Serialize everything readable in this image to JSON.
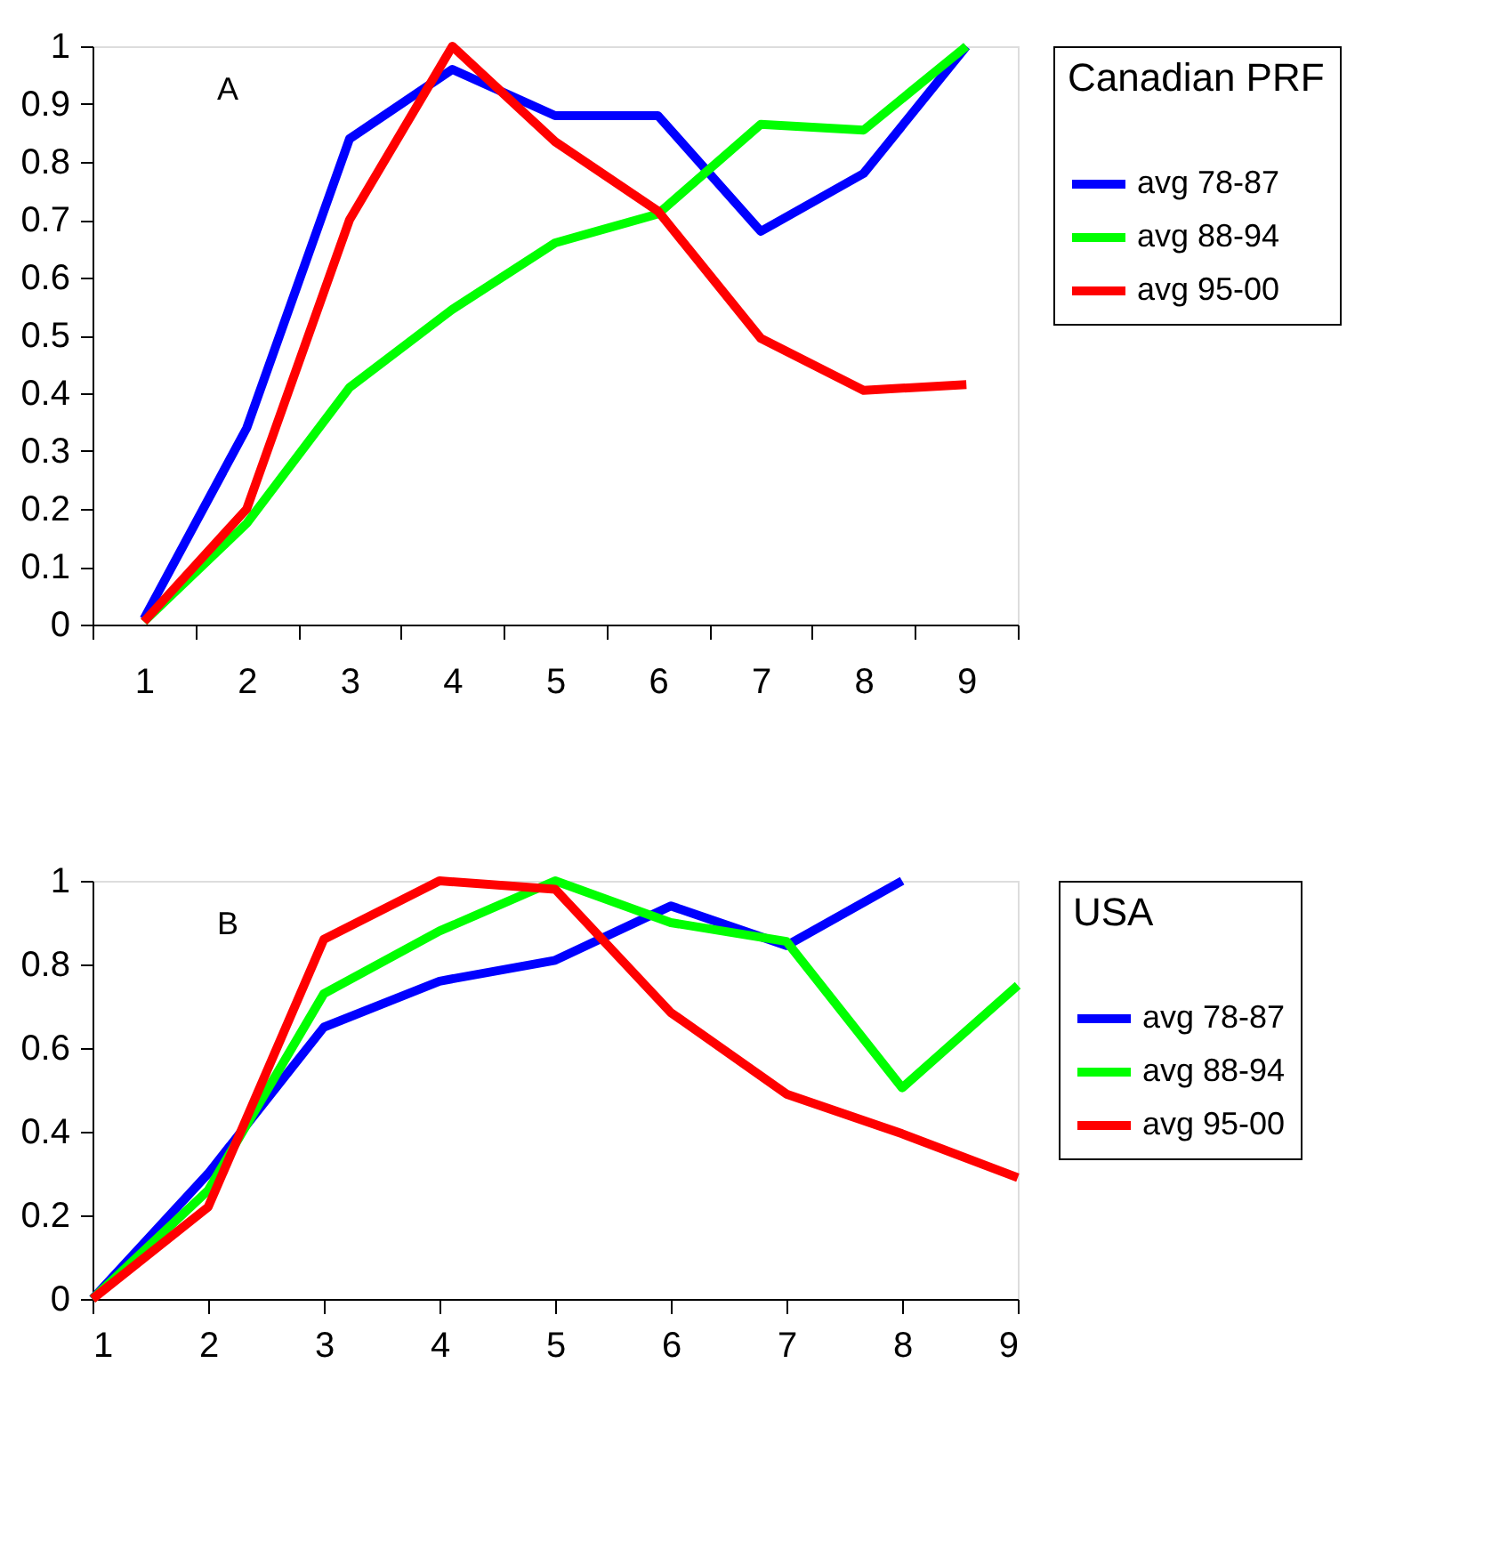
{
  "chart_data": [
    {
      "type": "line",
      "legend_title": "Canadian PRF",
      "annotations": [
        "A"
      ],
      "legend": "right",
      "categories": [
        "1",
        "2",
        "3",
        "4",
        "5",
        "6",
        "7",
        "8",
        "9"
      ],
      "ylim": [
        0,
        1
      ],
      "yticks": [
        0,
        0.1,
        0.2,
        0.3,
        0.4,
        0.5,
        0.6,
        0.7,
        0.8,
        0.9,
        1
      ],
      "series": [
        {
          "name": "avg 78-87",
          "color": "#0000ff",
          "values": [
            0.01,
            0.34,
            0.84,
            0.96,
            0.88,
            0.88,
            0.68,
            0.78,
            1.0
          ]
        },
        {
          "name": "avg 88-94",
          "color": "#00ff00",
          "values": [
            0.005,
            0.175,
            0.41,
            0.545,
            0.66,
            0.71,
            0.865,
            0.855,
            1.0
          ]
        },
        {
          "name": "avg 95-00",
          "color": "#ff0000",
          "values": [
            0.005,
            0.2,
            0.7,
            1.0,
            0.835,
            0.715,
            0.495,
            0.405,
            0.415
          ]
        }
      ]
    },
    {
      "type": "line",
      "legend_title": "USA",
      "annotations": [
        "B"
      ],
      "legend": "right",
      "x": [
        1,
        2,
        3,
        4,
        5,
        6,
        7,
        8,
        9
      ],
      "xlim": [
        1,
        9
      ],
      "xticks": [
        1,
        2,
        3,
        4,
        5,
        6,
        7,
        8,
        9
      ],
      "ylim": [
        0,
        1
      ],
      "yticks": [
        0,
        0.2,
        0.4,
        0.6,
        0.8,
        1
      ],
      "series": [
        {
          "name": "avg 78-87",
          "color": "#0000ff",
          "values": [
            0,
            0.3,
            0.65,
            0.76,
            0.81,
            0.94,
            0.845,
            1.0,
            null
          ]
        },
        {
          "name": "avg 88-94",
          "color": "#00ff00",
          "values": [
            0,
            0.26,
            0.73,
            0.88,
            1.0,
            0.9,
            0.855,
            0.505,
            0.75
          ]
        },
        {
          "name": "avg 95-00",
          "color": "#ff0000",
          "values": [
            0,
            0.22,
            0.86,
            1.0,
            0.98,
            0.685,
            0.49,
            0.395,
            0.29
          ]
        }
      ]
    }
  ]
}
